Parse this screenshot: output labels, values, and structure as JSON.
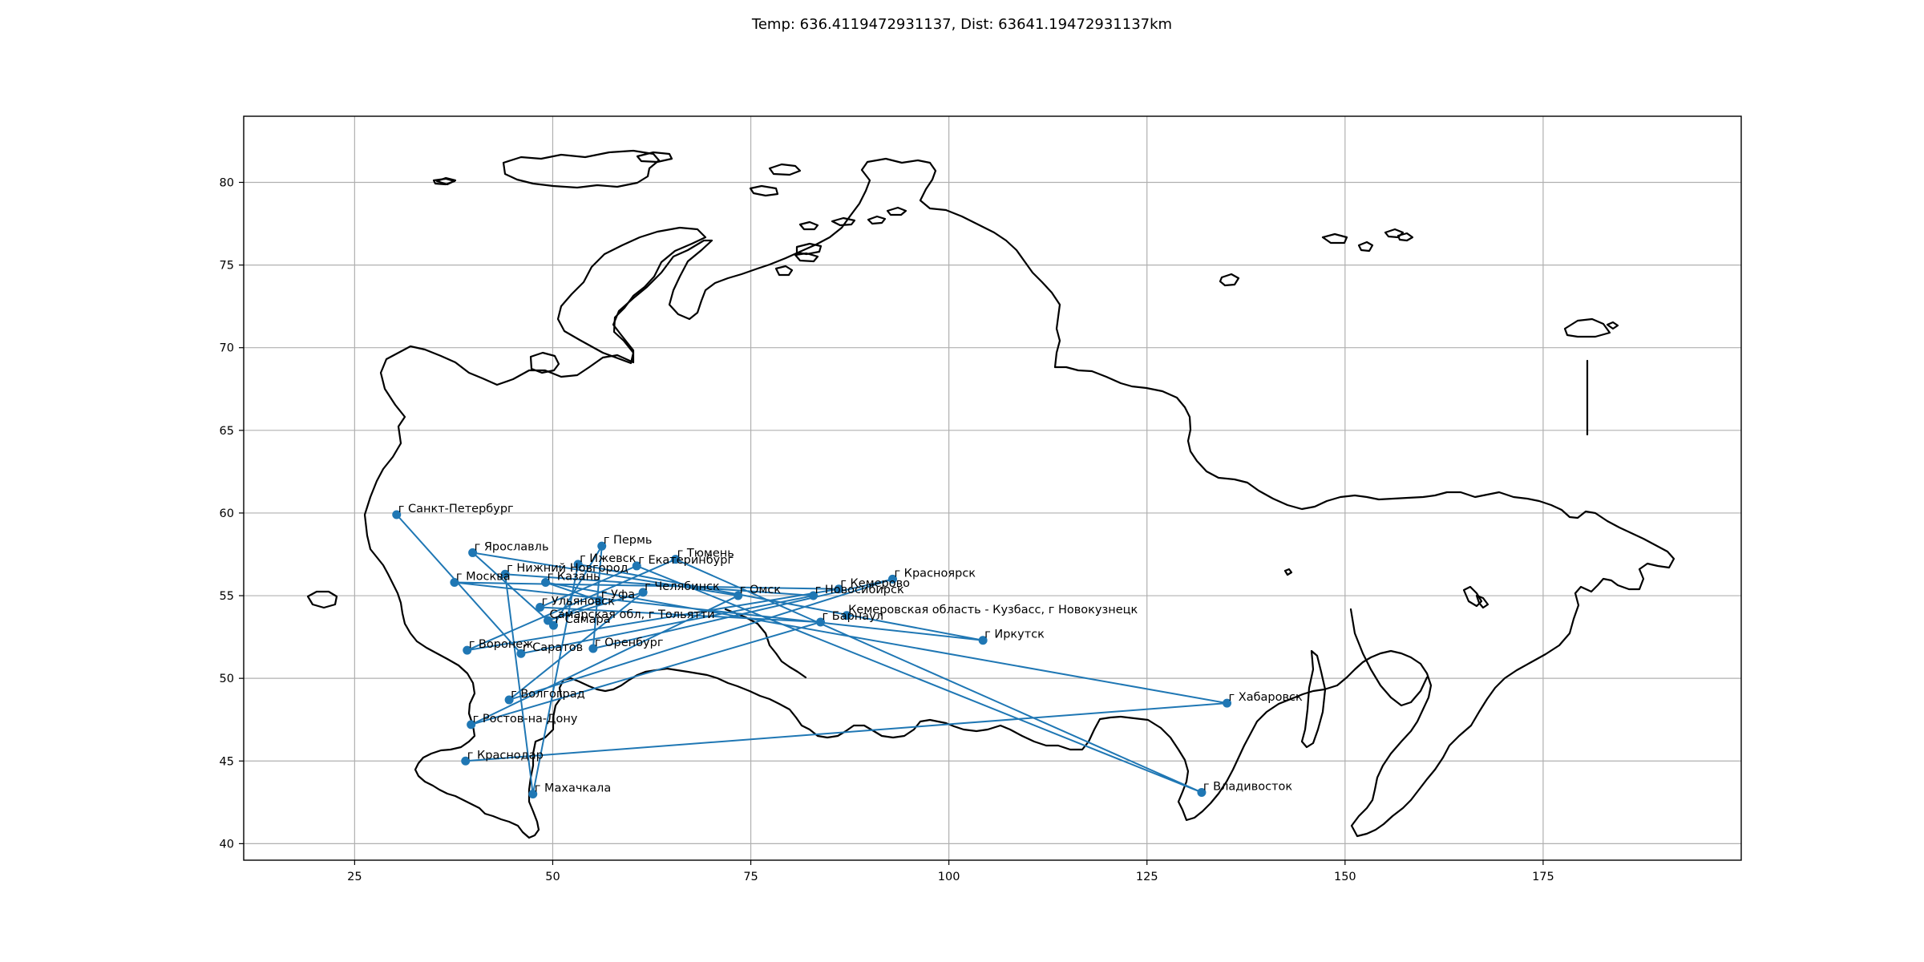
{
  "title": "Temp: 636.4119472931137, Dist: 63641.19472931137km",
  "colors": {
    "route": "#1f77b4",
    "point": "#1f77b4",
    "border": "#000000",
    "grid": "#b0b0b0"
  },
  "chart_data": {
    "type": "line",
    "title": "Temp: 636.4119472931137, Dist: 63641.19472931137km",
    "xlabel": "",
    "ylabel": "",
    "xlim": [
      11,
      200
    ],
    "ylim": [
      39,
      84
    ],
    "xticks": [
      25,
      50,
      75,
      100,
      125,
      150,
      175
    ],
    "yticks": [
      40,
      45,
      50,
      55,
      60,
      65,
      70,
      75,
      80
    ],
    "grid": true,
    "cities": [
      {
        "name": "г Санкт-Петербург",
        "lon": 30.3,
        "lat": 59.9
      },
      {
        "name": "г Ярославль",
        "lon": 39.9,
        "lat": 57.6
      },
      {
        "name": "г Нижний Новгород",
        "lon": 44.0,
        "lat": 56.3
      },
      {
        "name": "г Москва",
        "lon": 37.6,
        "lat": 55.8
      },
      {
        "name": "г Казань",
        "lon": 49.1,
        "lat": 55.8
      },
      {
        "name": "г Ижевск",
        "lon": 53.2,
        "lat": 56.9
      },
      {
        "name": "г Пермь",
        "lon": 56.2,
        "lat": 58.0
      },
      {
        "name": "г Екатеринбург",
        "lon": 60.6,
        "lat": 56.8
      },
      {
        "name": "г Тюмень",
        "lon": 65.5,
        "lat": 57.2
      },
      {
        "name": "г Челябинск",
        "lon": 61.4,
        "lat": 55.2
      },
      {
        "name": "г Уфа",
        "lon": 55.9,
        "lat": 54.7
      },
      {
        "name": "г Ульяновск",
        "lon": 48.4,
        "lat": 54.3
      },
      {
        "name": "Самарская обл, г Тольятти",
        "lon": 49.4,
        "lat": 53.5
      },
      {
        "name": "г Самара",
        "lon": 50.1,
        "lat": 53.2
      },
      {
        "name": "г Оренбург",
        "lon": 55.1,
        "lat": 51.8
      },
      {
        "name": "г Саратов",
        "lon": 46.0,
        "lat": 51.5
      },
      {
        "name": "г Воронеж",
        "lon": 39.2,
        "lat": 51.7
      },
      {
        "name": "г Волгоград",
        "lon": 44.5,
        "lat": 48.7
      },
      {
        "name": "г Ростов-на-Дону",
        "lon": 39.7,
        "lat": 47.2
      },
      {
        "name": "г Краснодар",
        "lon": 39.0,
        "lat": 45.0
      },
      {
        "name": "г Махачкала",
        "lon": 47.5,
        "lat": 43.0
      },
      {
        "name": "г Омск",
        "lon": 73.4,
        "lat": 55.0
      },
      {
        "name": "г Новосибирск",
        "lon": 82.9,
        "lat": 55.0
      },
      {
        "name": "г Кемерово",
        "lon": 86.1,
        "lat": 55.4
      },
      {
        "name": "г Красноярск",
        "lon": 92.9,
        "lat": 56.0
      },
      {
        "name": "Кемеровская область - Кузбасс, г Новокузнецк",
        "lon": 87.1,
        "lat": 53.8
      },
      {
        "name": "г Барнаул",
        "lon": 83.8,
        "lat": 53.4
      },
      {
        "name": "г Иркутск",
        "lon": 104.3,
        "lat": 52.3
      },
      {
        "name": "г Хабаровск",
        "lon": 135.1,
        "lat": 48.5
      },
      {
        "name": "г Владивосток",
        "lon": 131.9,
        "lat": 43.1
      }
    ],
    "route": [
      "г Санкт-Петербург",
      "г Саратов",
      "г Новосибирск",
      "г Нижний Новгород",
      "г Махачкала",
      "г Ижевск",
      "г Иркутск",
      "г Москва",
      "г Кемерово",
      "г Воронеж",
      "г Тюмень",
      "г Владивосток",
      "г Екатеринбург",
      "г Ульяновск",
      "г Барнаул",
      "г Ростов-на-Дону",
      "г Омск",
      "г Ярославль",
      "г Самара",
      "г Пермь",
      "г Оренбург",
      "г Красноярск",
      "г Волгоград",
      "г Челябинск",
      "Самарская обл, г Тольятти",
      "г Уфа",
      "г Казань",
      "г Хабаровск",
      "г Краснодар"
    ]
  }
}
